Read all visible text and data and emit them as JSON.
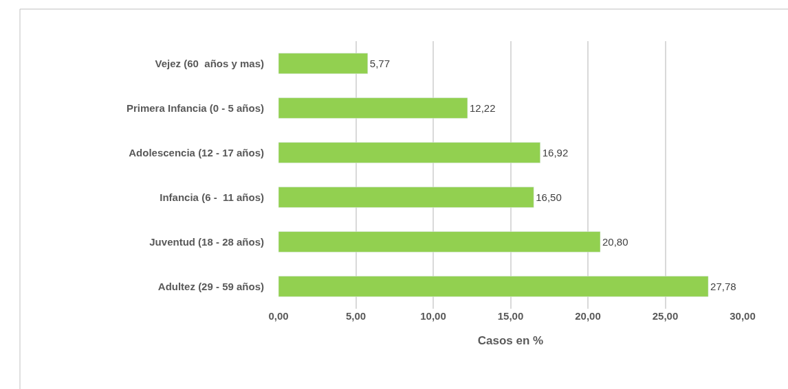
{
  "chart_data": {
    "type": "bar",
    "orientation": "horizontal",
    "xlabel": "Casos en %",
    "categories": [
      "Vejez (60  años y mas)",
      "Primera Infancia (0 - 5 años)",
      "Adolescencia (12 - 17 años)",
      "Infancia (6 -  11 años)",
      "Juventud (18 - 28 años)",
      "Adultez (29 - 59 años)"
    ],
    "values": [
      5.77,
      12.22,
      16.92,
      16.5,
      20.8,
      27.78
    ],
    "value_labels": [
      "5,77",
      "12,22",
      "16,92",
      "16,50",
      "20,80",
      "27,78"
    ],
    "color": "#92d050",
    "xlim": [
      0,
      30
    ],
    "xticks": [
      {
        "value": 0,
        "label": "0,00"
      },
      {
        "value": 5,
        "label": "5,00"
      },
      {
        "value": 10,
        "label": "10,00"
      },
      {
        "value": 15,
        "label": "15,00"
      },
      {
        "value": 20,
        "label": "20,00"
      },
      {
        "value": 25,
        "label": "25,00"
      },
      {
        "value": 30,
        "label": "30,00"
      }
    ],
    "grid": "x"
  }
}
